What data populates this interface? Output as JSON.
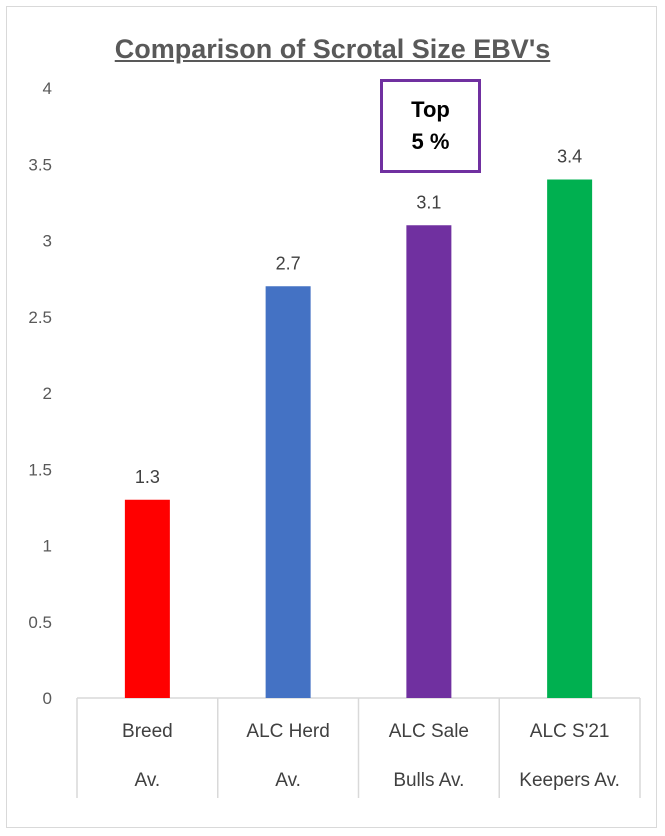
{
  "chart_data": {
    "type": "bar",
    "title": "Comparison of Scrotal Size EBV's",
    "categories": [
      [
        "Breed",
        "Av."
      ],
      [
        "ALC Herd",
        "Av."
      ],
      [
        "ALC Sale",
        "Bulls Av."
      ],
      [
        "ALC S'21",
        "Keepers Av."
      ]
    ],
    "values": [
      1.3,
      2.7,
      3.1,
      3.4
    ],
    "data_labels": [
      "1.3",
      "2.7",
      "3.1",
      "3.4"
    ],
    "bar_colors": [
      "#ff0000",
      "#4472c4",
      "#7030a0",
      "#00b050"
    ],
    "ylim": [
      0,
      4
    ],
    "yticks": [
      "0",
      "0.5",
      "1",
      "1.5",
      "2",
      "2.5",
      "3",
      "3.5",
      "4"
    ],
    "grid": false,
    "legend": "none",
    "annotation": {
      "line1": "Top",
      "line2": "5 %",
      "border_color": "#7030a0",
      "target": "ALC Sale Bulls Av."
    }
  }
}
